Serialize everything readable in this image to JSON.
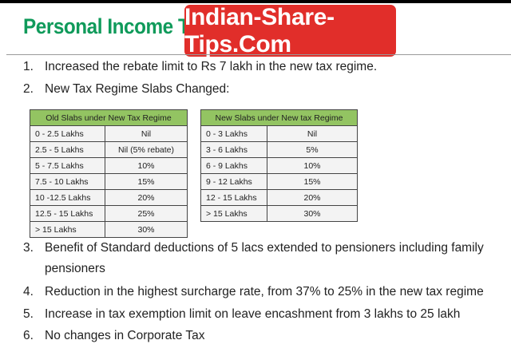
{
  "title": "Personal Income Tax",
  "brand": "Indian-Share-Tips.Com",
  "items": [
    {
      "num": "1.",
      "text": "Increased the rebate limit to Rs 7 lakh in the new tax regime."
    },
    {
      "num": "2.",
      "text": "New Tax Regime Slabs Changed:"
    },
    {
      "num": "3.",
      "text": "Benefit of Standard deductions of 5 lacs extended to pensioners including family",
      "text2": "pensioners"
    },
    {
      "num": "4.",
      "text": "Reduction in the highest surcharge rate, from 37% to 25% in the new tax regime"
    },
    {
      "num": "5.",
      "text": "Increase in tax exemption limit on leave encashment from 3 lakhs to 25 lakh"
    },
    {
      "num": "6.",
      "text": "No changes in Corporate Tax"
    }
  ],
  "old_table": {
    "header": "Old Slabs under New Tax Regime",
    "rows": [
      [
        "0 - 2.5 Lakhs",
        "Nil"
      ],
      [
        "2.5 - 5 Lakhs",
        "Nil (5% rebate)"
      ],
      [
        "5 - 7.5 Lakhs",
        "10%"
      ],
      [
        "7.5 - 10 Lakhs",
        "15%"
      ],
      [
        "10 -12.5 Lakhs",
        "20%"
      ],
      [
        "12.5 - 15 Lakhs",
        "25%"
      ],
      [
        "> 15 Lakhs",
        "30%"
      ]
    ]
  },
  "new_table": {
    "header": "New Slabs under New tax Regime",
    "rows": [
      [
        "0 - 3 Lakhs",
        "Nil"
      ],
      [
        "3 - 6 Lakhs",
        "5%"
      ],
      [
        "6 - 9 Lakhs",
        "10%"
      ],
      [
        "9 - 12 Lakhs",
        "15%"
      ],
      [
        "12 - 15 Lakhs",
        "20%"
      ],
      [
        "> 15 Lakhs",
        "30%"
      ]
    ]
  },
  "colors": {
    "title": "#0f9a5a",
    "brand_bg": "#e12e2a",
    "table_header": "#93c462"
  }
}
